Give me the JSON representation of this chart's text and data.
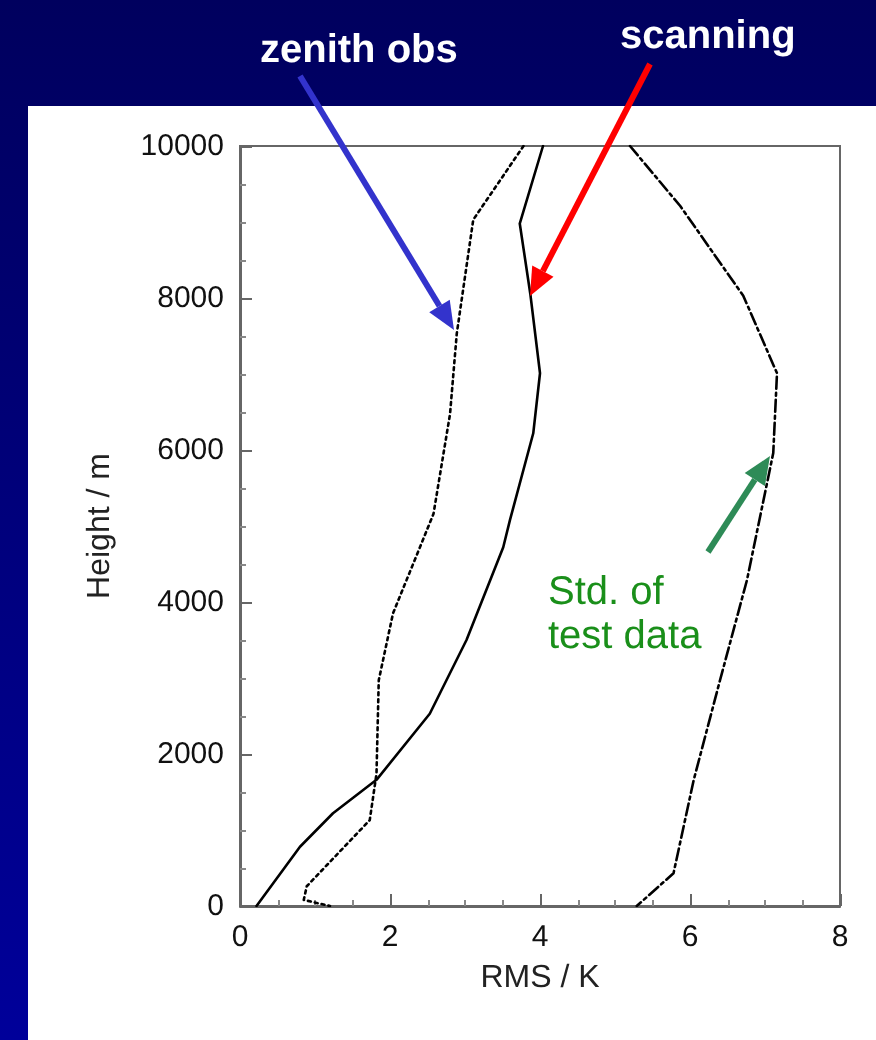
{
  "chart_data": {
    "type": "line",
    "xlabel": "RMS / K",
    "ylabel": "Height / m",
    "xlim": [
      0,
      8
    ],
    "xticks": [
      0,
      2,
      4,
      6,
      8
    ],
    "ylim": [
      0,
      10000
    ],
    "yticks": [
      0,
      2000,
      4000,
      6000,
      8000,
      10000
    ],
    "grid": false,
    "marker": "none",
    "annotations": [
      "zenith obs",
      "scanning",
      "Std. of test data"
    ],
    "series": [
      {
        "color": "#000000",
        "line_style": "dotted",
        "x": [
          3.78,
          3.11,
          2.89,
          2.8,
          2.58,
          2.04,
          1.85,
          1.82,
          1.73,
          0.89,
          0.85,
          1.2
        ],
        "values": [
          10000,
          9030,
          7530,
          6470,
          5160,
          3850,
          2970,
          1740,
          1130,
          260,
          80,
          0
        ]
      },
      {
        "color": "#000000",
        "line_style": "solid",
        "x": [
          4.04,
          3.73,
          3.87,
          4.0,
          3.91,
          3.6,
          3.51,
          3.02,
          2.53,
          1.82,
          1.24,
          0.8,
          0.22
        ],
        "values": [
          10000,
          8980,
          8060,
          7010,
          6220,
          5080,
          4720,
          3500,
          2530,
          1660,
          1220,
          780,
          0
        ]
      },
      {
        "color": "#000000",
        "line_style": "dashed",
        "x": [
          5.2,
          5.87,
          6.71,
          7.16,
          7.11,
          6.76,
          6.4,
          6.05,
          5.78,
          5.29
        ],
        "values": [
          10000,
          9210,
          8030,
          7010,
          5960,
          4290,
          2970,
          1660,
          430,
          0
        ]
      }
    ]
  }
}
